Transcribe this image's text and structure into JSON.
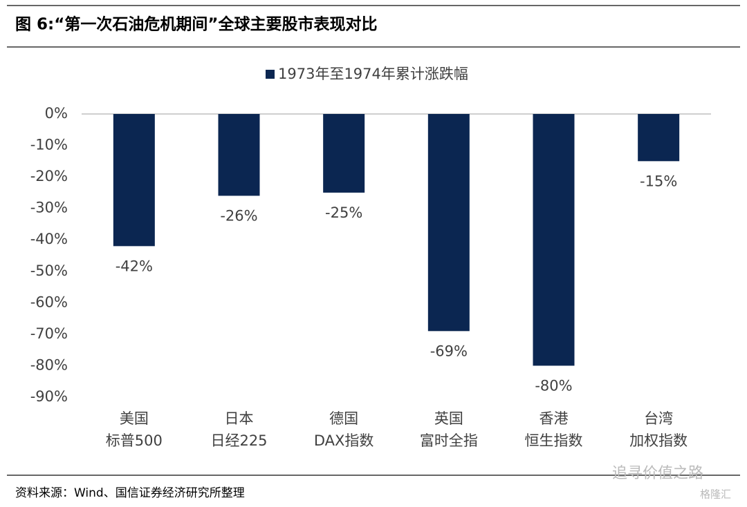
{
  "chart_data": {
    "type": "bar",
    "title": "图 6:“第一次石油危机期间”全球主要股市表现对比",
    "source": "资料来源：Wind、国信证券经济研究所整理",
    "watermark": [
      "追寻价值之路",
      "格隆汇"
    ],
    "categories": [
      [
        "美国",
        "标普500"
      ],
      [
        "日本",
        "日经225"
      ],
      [
        "德国",
        "DAX指数"
      ],
      [
        "英国",
        "富时全指"
      ],
      [
        "香港",
        "恒生指数"
      ],
      [
        "台湾",
        "加权指数"
      ]
    ],
    "series": [
      {
        "name": "1973年至1974年累计涨跌幅",
        "color": "#0b2651",
        "values": [
          -42,
          -26,
          -25,
          -69,
          -80,
          -15
        ],
        "value_labels": [
          "-42%",
          "-26%",
          "-25%",
          "-69%",
          "-80%",
          "-15%"
        ]
      }
    ],
    "ylim": [
      -90,
      0
    ],
    "yticks": [
      {
        "value": 0,
        "label": "0%"
      },
      {
        "value": -10,
        "label": "-10%"
      },
      {
        "value": -20,
        "label": "-20%"
      },
      {
        "value": -30,
        "label": "-30%"
      },
      {
        "value": -40,
        "label": "-40%"
      },
      {
        "value": -50,
        "label": "-50%"
      },
      {
        "value": -60,
        "label": "-60%"
      },
      {
        "value": -70,
        "label": "-70%"
      },
      {
        "value": -80,
        "label": "-80%"
      },
      {
        "value": -90,
        "label": "-90%"
      }
    ],
    "grid": false,
    "legend": "top"
  }
}
